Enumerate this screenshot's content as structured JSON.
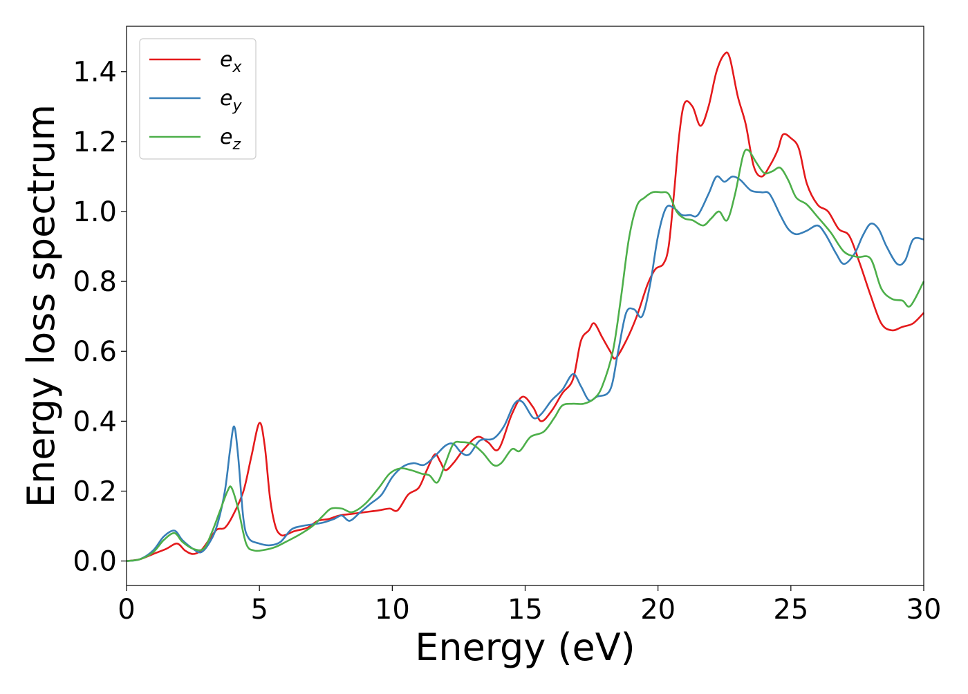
{
  "chart_data": {
    "type": "line",
    "title": "",
    "xlabel": "Energy (eV)",
    "ylabel": "Energy loss spectrum",
    "xlim": [
      0,
      30
    ],
    "ylim": [
      -0.07,
      1.53
    ],
    "xticks": [
      0,
      5,
      10,
      15,
      20,
      25,
      30
    ],
    "xtick_labels": [
      "0",
      "5",
      "10",
      "15",
      "20",
      "25",
      "30"
    ],
    "yticks": [
      0.0,
      0.2,
      0.4,
      0.6,
      0.8,
      1.0,
      1.2,
      1.4
    ],
    "ytick_labels": [
      "0.0",
      "0.2",
      "0.4",
      "0.6",
      "0.8",
      "1.0",
      "1.2",
      "1.4"
    ],
    "grid": false,
    "legend_position": "top-left",
    "series": [
      {
        "name": "e_x",
        "label_base": "e",
        "label_sub": "x",
        "color": "#e41a1c",
        "points": [
          [
            0,
            0.0
          ],
          [
            0.5,
            0.005
          ],
          [
            1.0,
            0.02
          ],
          [
            1.5,
            0.035
          ],
          [
            1.9,
            0.05
          ],
          [
            2.2,
            0.03
          ],
          [
            2.5,
            0.02
          ],
          [
            2.8,
            0.03
          ],
          [
            3.1,
            0.06
          ],
          [
            3.4,
            0.09
          ],
          [
            3.7,
            0.095
          ],
          [
            4.0,
            0.13
          ],
          [
            4.4,
            0.2
          ],
          [
            4.7,
            0.3
          ],
          [
            5.0,
            0.395
          ],
          [
            5.2,
            0.33
          ],
          [
            5.4,
            0.18
          ],
          [
            5.6,
            0.1
          ],
          [
            5.8,
            0.075
          ],
          [
            6.0,
            0.075
          ],
          [
            6.3,
            0.085
          ],
          [
            6.8,
            0.095
          ],
          [
            7.2,
            0.115
          ],
          [
            7.6,
            0.12
          ],
          [
            8.0,
            0.13
          ],
          [
            8.5,
            0.135
          ],
          [
            9.0,
            0.14
          ],
          [
            9.5,
            0.145
          ],
          [
            9.9,
            0.15
          ],
          [
            10.2,
            0.145
          ],
          [
            10.6,
            0.19
          ],
          [
            11.0,
            0.21
          ],
          [
            11.3,
            0.26
          ],
          [
            11.6,
            0.305
          ],
          [
            11.8,
            0.285
          ],
          [
            12.0,
            0.26
          ],
          [
            12.3,
            0.28
          ],
          [
            12.7,
            0.32
          ],
          [
            13.2,
            0.355
          ],
          [
            13.6,
            0.34
          ],
          [
            14.0,
            0.32
          ],
          [
            14.5,
            0.42
          ],
          [
            14.9,
            0.47
          ],
          [
            15.3,
            0.44
          ],
          [
            15.6,
            0.4
          ],
          [
            16.0,
            0.43
          ],
          [
            16.4,
            0.48
          ],
          [
            16.8,
            0.52
          ],
          [
            17.1,
            0.63
          ],
          [
            17.4,
            0.66
          ],
          [
            17.6,
            0.68
          ],
          [
            17.9,
            0.64
          ],
          [
            18.2,
            0.6
          ],
          [
            18.4,
            0.58
          ],
          [
            18.8,
            0.63
          ],
          [
            19.2,
            0.7
          ],
          [
            19.6,
            0.79
          ],
          [
            19.9,
            0.835
          ],
          [
            20.2,
            0.85
          ],
          [
            20.4,
            0.9
          ],
          [
            20.6,
            1.05
          ],
          [
            20.8,
            1.22
          ],
          [
            21.0,
            1.31
          ],
          [
            21.3,
            1.3
          ],
          [
            21.6,
            1.245
          ],
          [
            21.9,
            1.3
          ],
          [
            22.2,
            1.4
          ],
          [
            22.5,
            1.45
          ],
          [
            22.7,
            1.44
          ],
          [
            23.0,
            1.33
          ],
          [
            23.3,
            1.25
          ],
          [
            23.6,
            1.13
          ],
          [
            23.9,
            1.1
          ],
          [
            24.2,
            1.13
          ],
          [
            24.5,
            1.175
          ],
          [
            24.7,
            1.22
          ],
          [
            25.0,
            1.21
          ],
          [
            25.3,
            1.18
          ],
          [
            25.6,
            1.08
          ],
          [
            26.0,
            1.02
          ],
          [
            26.4,
            1.0
          ],
          [
            26.8,
            0.95
          ],
          [
            27.2,
            0.93
          ],
          [
            27.6,
            0.85
          ],
          [
            28.0,
            0.76
          ],
          [
            28.4,
            0.68
          ],
          [
            28.8,
            0.66
          ],
          [
            29.2,
            0.67
          ],
          [
            29.6,
            0.68
          ],
          [
            30.0,
            0.71
          ]
        ]
      },
      {
        "name": "e_y",
        "label_base": "e",
        "label_sub": "y",
        "color": "#377eb8",
        "points": [
          [
            0,
            0.0
          ],
          [
            0.5,
            0.005
          ],
          [
            1.0,
            0.03
          ],
          [
            1.4,
            0.07
          ],
          [
            1.8,
            0.087
          ],
          [
            2.1,
            0.06
          ],
          [
            2.5,
            0.035
          ],
          [
            2.8,
            0.025
          ],
          [
            3.1,
            0.05
          ],
          [
            3.4,
            0.1
          ],
          [
            3.7,
            0.2
          ],
          [
            3.9,
            0.32
          ],
          [
            4.05,
            0.385
          ],
          [
            4.2,
            0.3
          ],
          [
            4.4,
            0.12
          ],
          [
            4.6,
            0.065
          ],
          [
            5.0,
            0.05
          ],
          [
            5.4,
            0.045
          ],
          [
            5.8,
            0.055
          ],
          [
            6.2,
            0.09
          ],
          [
            6.6,
            0.1
          ],
          [
            7.0,
            0.105
          ],
          [
            7.4,
            0.11
          ],
          [
            7.8,
            0.12
          ],
          [
            8.1,
            0.13
          ],
          [
            8.4,
            0.115
          ],
          [
            8.8,
            0.14
          ],
          [
            9.2,
            0.165
          ],
          [
            9.6,
            0.19
          ],
          [
            10.0,
            0.24
          ],
          [
            10.4,
            0.27
          ],
          [
            10.8,
            0.28
          ],
          [
            11.2,
            0.275
          ],
          [
            11.6,
            0.3
          ],
          [
            12.0,
            0.33
          ],
          [
            12.3,
            0.335
          ],
          [
            12.6,
            0.31
          ],
          [
            12.9,
            0.305
          ],
          [
            13.3,
            0.345
          ],
          [
            13.8,
            0.35
          ],
          [
            14.2,
            0.385
          ],
          [
            14.6,
            0.45
          ],
          [
            14.9,
            0.455
          ],
          [
            15.3,
            0.41
          ],
          [
            15.6,
            0.42
          ],
          [
            16.0,
            0.46
          ],
          [
            16.4,
            0.49
          ],
          [
            16.8,
            0.535
          ],
          [
            17.1,
            0.5
          ],
          [
            17.4,
            0.46
          ],
          [
            17.7,
            0.47
          ],
          [
            18.2,
            0.49
          ],
          [
            18.5,
            0.6
          ],
          [
            18.8,
            0.71
          ],
          [
            19.1,
            0.72
          ],
          [
            19.4,
            0.7
          ],
          [
            19.7,
            0.79
          ],
          [
            20.0,
            0.93
          ],
          [
            20.3,
            1.01
          ],
          [
            20.6,
            1.01
          ],
          [
            20.9,
            0.99
          ],
          [
            21.2,
            0.99
          ],
          [
            21.5,
            0.99
          ],
          [
            21.9,
            1.05
          ],
          [
            22.2,
            1.1
          ],
          [
            22.5,
            1.085
          ],
          [
            22.8,
            1.1
          ],
          [
            23.1,
            1.09
          ],
          [
            23.5,
            1.06
          ],
          [
            23.9,
            1.055
          ],
          [
            24.2,
            1.05
          ],
          [
            24.6,
            0.99
          ],
          [
            24.9,
            0.95
          ],
          [
            25.2,
            0.935
          ],
          [
            25.6,
            0.945
          ],
          [
            26.0,
            0.96
          ],
          [
            26.3,
            0.935
          ],
          [
            26.7,
            0.88
          ],
          [
            27.0,
            0.85
          ],
          [
            27.4,
            0.88
          ],
          [
            27.7,
            0.93
          ],
          [
            28.0,
            0.965
          ],
          [
            28.3,
            0.95
          ],
          [
            28.6,
            0.9
          ],
          [
            29.0,
            0.85
          ],
          [
            29.3,
            0.86
          ],
          [
            29.6,
            0.92
          ],
          [
            30.0,
            0.92
          ]
        ]
      },
      {
        "name": "e_z",
        "label_base": "e",
        "label_sub": "z",
        "color": "#4daf4a",
        "points": [
          [
            0,
            0.0
          ],
          [
            0.5,
            0.005
          ],
          [
            1.0,
            0.025
          ],
          [
            1.4,
            0.06
          ],
          [
            1.8,
            0.08
          ],
          [
            2.1,
            0.055
          ],
          [
            2.5,
            0.035
          ],
          [
            2.9,
            0.035
          ],
          [
            3.2,
            0.08
          ],
          [
            3.5,
            0.14
          ],
          [
            3.8,
            0.2
          ],
          [
            3.95,
            0.21
          ],
          [
            4.2,
            0.15
          ],
          [
            4.5,
            0.05
          ],
          [
            4.8,
            0.03
          ],
          [
            5.2,
            0.032
          ],
          [
            5.6,
            0.04
          ],
          [
            6.0,
            0.055
          ],
          [
            6.5,
            0.075
          ],
          [
            7.0,
            0.1
          ],
          [
            7.4,
            0.13
          ],
          [
            7.7,
            0.15
          ],
          [
            8.1,
            0.15
          ],
          [
            8.5,
            0.14
          ],
          [
            9.0,
            0.165
          ],
          [
            9.5,
            0.21
          ],
          [
            9.9,
            0.25
          ],
          [
            10.3,
            0.265
          ],
          [
            10.7,
            0.26
          ],
          [
            11.1,
            0.25
          ],
          [
            11.4,
            0.245
          ],
          [
            11.7,
            0.225
          ],
          [
            12.0,
            0.28
          ],
          [
            12.3,
            0.335
          ],
          [
            12.6,
            0.34
          ],
          [
            13.0,
            0.335
          ],
          [
            13.4,
            0.31
          ],
          [
            13.8,
            0.275
          ],
          [
            14.1,
            0.28
          ],
          [
            14.5,
            0.32
          ],
          [
            14.8,
            0.315
          ],
          [
            15.2,
            0.355
          ],
          [
            15.7,
            0.37
          ],
          [
            16.1,
            0.41
          ],
          [
            16.4,
            0.445
          ],
          [
            16.8,
            0.45
          ],
          [
            17.2,
            0.45
          ],
          [
            17.6,
            0.465
          ],
          [
            17.9,
            0.5
          ],
          [
            18.3,
            0.6
          ],
          [
            18.6,
            0.75
          ],
          [
            18.9,
            0.92
          ],
          [
            19.2,
            1.015
          ],
          [
            19.5,
            1.04
          ],
          [
            19.8,
            1.055
          ],
          [
            20.1,
            1.055
          ],
          [
            20.4,
            1.05
          ],
          [
            20.7,
            1.0
          ],
          [
            21.0,
            0.98
          ],
          [
            21.3,
            0.975
          ],
          [
            21.7,
            0.96
          ],
          [
            22.0,
            0.98
          ],
          [
            22.3,
            1.0
          ],
          [
            22.6,
            0.975
          ],
          [
            22.9,
            1.05
          ],
          [
            23.2,
            1.16
          ],
          [
            23.4,
            1.175
          ],
          [
            23.7,
            1.14
          ],
          [
            24.0,
            1.11
          ],
          [
            24.3,
            1.115
          ],
          [
            24.6,
            1.125
          ],
          [
            24.9,
            1.09
          ],
          [
            25.2,
            1.04
          ],
          [
            25.6,
            1.02
          ],
          [
            26.0,
            0.985
          ],
          [
            26.5,
            0.94
          ],
          [
            27.0,
            0.885
          ],
          [
            27.5,
            0.87
          ],
          [
            28.0,
            0.865
          ],
          [
            28.4,
            0.78
          ],
          [
            28.8,
            0.75
          ],
          [
            29.2,
            0.745
          ],
          [
            29.5,
            0.73
          ],
          [
            30.0,
            0.8
          ]
        ]
      }
    ]
  }
}
